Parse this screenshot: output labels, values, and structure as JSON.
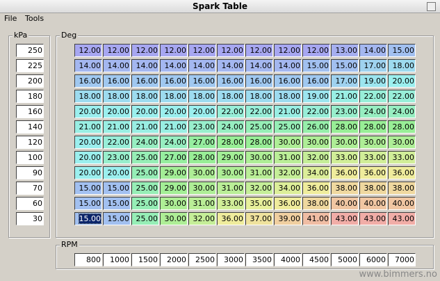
{
  "window": {
    "title": "Spark Table",
    "menu": [
      "File",
      "Tools"
    ],
    "watermark": "www.bimmers.no"
  },
  "table": {
    "kpa_label": "kPa",
    "deg_label": "Deg",
    "rpm_label": "RPM",
    "kpa": [
      "250",
      "225",
      "200",
      "180",
      "160",
      "140",
      "120",
      "100",
      "90",
      "70",
      "60",
      "30"
    ],
    "rpm": [
      "800",
      "1000",
      "1500",
      "2000",
      "2500",
      "3000",
      "3500",
      "4000",
      "4500",
      "5000",
      "6000",
      "7000"
    ],
    "rows": [
      [
        "12.00",
        "12.00",
        "12.00",
        "12.00",
        "12.00",
        "12.00",
        "12.00",
        "12.00",
        "12.00",
        "13.00",
        "14.00",
        "15.00"
      ],
      [
        "14.00",
        "14.00",
        "14.00",
        "14.00",
        "14.00",
        "14.00",
        "14.00",
        "14.00",
        "15.00",
        "15.00",
        "17.00",
        "18.00"
      ],
      [
        "16.00",
        "16.00",
        "16.00",
        "16.00",
        "16.00",
        "16.00",
        "16.00",
        "16.00",
        "16.00",
        "17.00",
        "19.00",
        "20.00"
      ],
      [
        "18.00",
        "18.00",
        "18.00",
        "18.00",
        "18.00",
        "18.00",
        "18.00",
        "18.00",
        "19.00",
        "21.00",
        "22.00",
        "22.00"
      ],
      [
        "20.00",
        "20.00",
        "20.00",
        "20.00",
        "20.00",
        "22.00",
        "22.00",
        "21.00",
        "22.00",
        "23.00",
        "24.00",
        "24.00"
      ],
      [
        "21.00",
        "21.00",
        "21.00",
        "21.00",
        "23.00",
        "24.00",
        "25.00",
        "25.00",
        "26.00",
        "28.00",
        "28.00",
        "28.00"
      ],
      [
        "20.00",
        "22.00",
        "24.00",
        "24.00",
        "27.00",
        "28.00",
        "28.00",
        "30.00",
        "30.00",
        "30.00",
        "30.00",
        "30.00"
      ],
      [
        "20.00",
        "23.00",
        "25.00",
        "27.00",
        "28.00",
        "29.00",
        "30.00",
        "31.00",
        "32.00",
        "33.00",
        "33.00",
        "33.00"
      ],
      [
        "20.00",
        "20.00",
        "25.00",
        "29.00",
        "30.00",
        "30.00",
        "31.00",
        "32.00",
        "34.00",
        "36.00",
        "36.00",
        "36.00"
      ],
      [
        "15.00",
        "15.00",
        "25.00",
        "29.00",
        "30.00",
        "31.00",
        "32.00",
        "34.00",
        "36.00",
        "38.00",
        "38.00",
        "38.00"
      ],
      [
        "15.00",
        "15.00",
        "25.00",
        "30.00",
        "31.00",
        "33.00",
        "35.00",
        "36.00",
        "38.00",
        "40.00",
        "40.00",
        "40.00"
      ],
      [
        "15.00",
        "15.00",
        "25.00",
        "30.00",
        "32.00",
        "36.00",
        "37.00",
        "39.00",
        "41.00",
        "43.00",
        "43.00",
        "43.00"
      ]
    ]
  }
}
